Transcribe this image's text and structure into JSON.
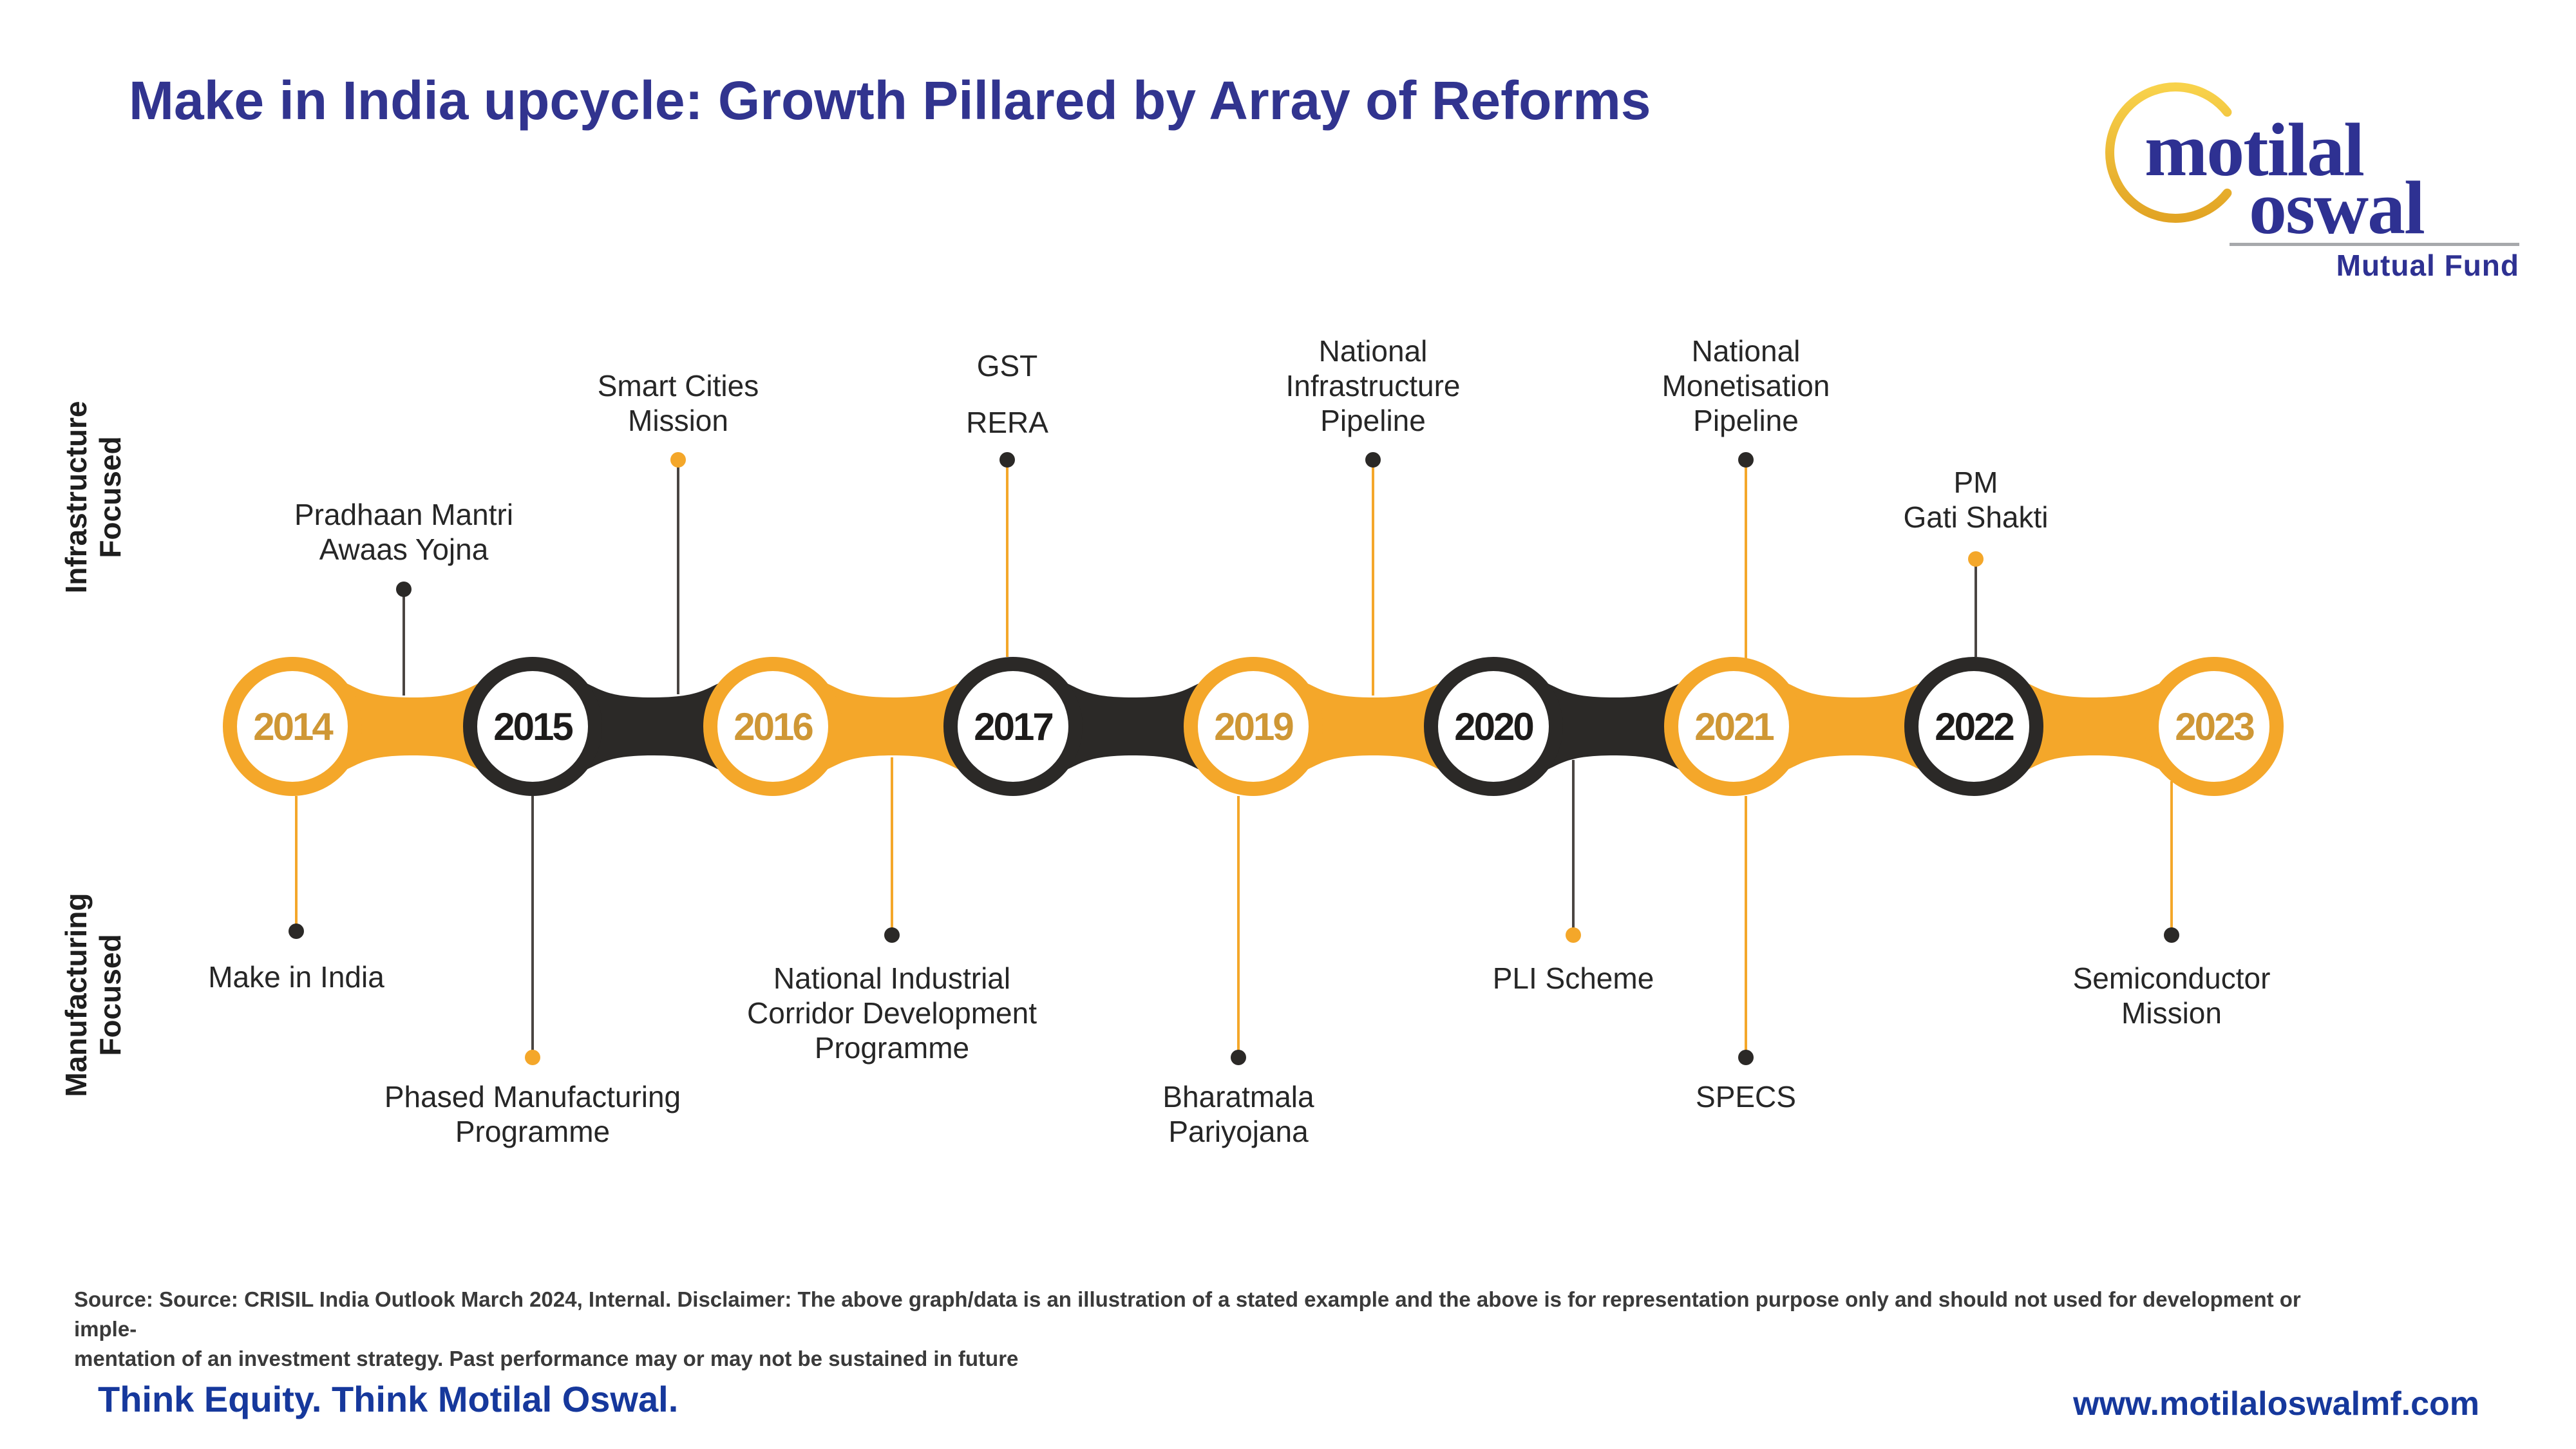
{
  "title": "Make in India upcycle: Growth Pillared by Array of Reforms",
  "logo": {
    "word1": "motilal",
    "word2": "oswal",
    "subtitle": "Mutual Fund"
  },
  "axis_labels": {
    "top": "Infrastructure\nFocused",
    "bottom": "Manufacturing\nFocused"
  },
  "timeline": {
    "years": [
      {
        "label": "2014",
        "color": "orange"
      },
      {
        "label": "2015",
        "color": "black"
      },
      {
        "label": "2016",
        "color": "orange"
      },
      {
        "label": "2017",
        "color": "black"
      },
      {
        "label": "2019",
        "color": "orange"
      },
      {
        "label": "2020",
        "color": "black"
      },
      {
        "label": "2021",
        "color": "orange"
      },
      {
        "label": "2022",
        "color": "black"
      },
      {
        "label": "2023",
        "color": "orange"
      }
    ],
    "connector_colors": [
      "orange",
      "black",
      "orange",
      "black",
      "orange",
      "black",
      "orange",
      "orange"
    ]
  },
  "events": {
    "top": [
      {
        "label": "Pradhaan Mantri\nAwaas Yojna",
        "line": "dark",
        "dot": "dark"
      },
      {
        "label": "Smart Cities\nMission",
        "line": "dark",
        "dot": "orange"
      },
      {
        "label": "GST\nRERA",
        "line": "orange",
        "dot": "dark"
      },
      {
        "label": "National\nInfrastructure\nPipeline",
        "line": "orange",
        "dot": "dark"
      },
      {
        "label": "National\nMonetisation\nPipeline",
        "line": "orange",
        "dot": "dark"
      },
      {
        "label": "PM\nGati Shakti",
        "line": "dark",
        "dot": "orange"
      }
    ],
    "bottom": [
      {
        "label": "Make in India",
        "line": "orange",
        "dot": "dark"
      },
      {
        "label": "Phased Manufacturing\nProgramme",
        "line": "dark",
        "dot": "orange"
      },
      {
        "label": "National Industrial\nCorridor Development\nProgramme",
        "line": "orange",
        "dot": "dark"
      },
      {
        "label": "Bharatmala\nPariyojana",
        "line": "orange",
        "dot": "dark"
      },
      {
        "label": "PLI Scheme",
        "line": "dark",
        "dot": "orange"
      },
      {
        "label": "SPECS",
        "line": "orange",
        "dot": "dark"
      },
      {
        "label": "Semiconductor\nMission",
        "line": "orange",
        "dot": "dark"
      }
    ]
  },
  "source": {
    "text": "Source: Source: CRISIL India Outlook March 2024, Internal. Disclaimer: The above graph/data is an illustration of a stated example and the above is for representation purpose only and should not used for development or imple-\nmentation of an investment strategy. Past performance may or may not be sustained in future"
  },
  "footer": {
    "tagline": "Think Equity. Think Motilal Oswal.",
    "url": "www.motilaloswalmf.com"
  },
  "colors": {
    "orange": "#F4A72A",
    "black": "#2B2927",
    "year_orange": "#CF9735",
    "year_black": "#1D1B1A",
    "dark_line": "#4A4542",
    "title_blue": "#31348F",
    "brand_blue": "#2E3192",
    "footer_blue": "#16389C",
    "gold_light": "#F8D24B",
    "gold_dark": "#E2A424",
    "divider_gray": "#A7A9AC"
  }
}
